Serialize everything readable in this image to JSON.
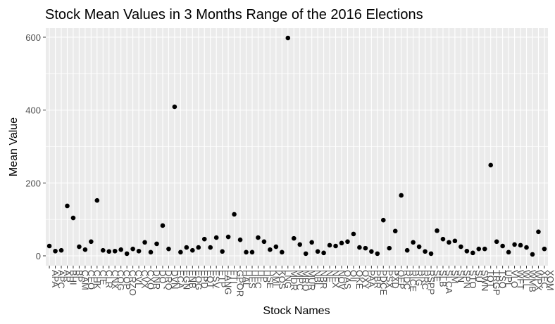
{
  "chart_data": {
    "type": "scatter",
    "title": "Stock Mean Values in 3 Months Range of the 2016 Elections",
    "x_label": "Stock Names",
    "y_label": "Mean Value",
    "categories": [
      "APA",
      "APC",
      "AR",
      "BHI",
      "BP",
      "CAM",
      "CEO",
      "CHK",
      "CIE",
      "CLR",
      "CNX",
      "COG",
      "COP",
      "CRZO",
      "CVI",
      "CVX",
      "CXO",
      "DNR",
      "DO",
      "DRQ",
      "DVN",
      "ECA",
      "EGN",
      "ENB",
      "EOG",
      "EPD",
      "EQT",
      "ESV",
      "ETP",
      "FANG",
      "FTI",
      "GPOR",
      "HAL",
      "HES",
      "HFC",
      "HP",
      "HSE",
      "KMI",
      "KOS",
      "LNG",
      "MDR",
      "MPC",
      "MRO",
      "MUR",
      "NBL",
      "NBR",
      "NE",
      "NFX",
      "NOV",
      "OAS",
      "OII",
      "OKE",
      "OXY",
      "PAA",
      "PBR",
      "PDCE",
      "PSX",
      "PXD",
      "QEP",
      "RDC",
      "RICE",
      "RIG",
      "RRC",
      "RSPP",
      "SE",
      "SLB",
      "SLCA",
      "SM",
      "SN",
      "SPN",
      "STO",
      "SU",
      "SWN",
      "TOT",
      "TRGP",
      "TSO",
      "UPL",
      "VLO",
      "WFT",
      "WLL",
      "WMB",
      "WPX",
      "XEC",
      "XOM"
    ],
    "values": [
      27,
      13,
      15,
      137,
      104,
      25,
      17,
      39,
      152,
      15,
      12,
      13,
      17,
      6,
      19,
      13,
      37,
      10,
      33,
      83,
      19,
      409,
      10,
      23,
      15,
      23,
      46,
      23,
      50,
      12,
      52,
      114,
      44,
      10,
      10,
      50,
      39,
      17,
      25,
      10,
      598,
      48,
      31,
      6,
      37,
      12,
      8,
      29,
      27,
      35,
      39,
      60,
      23,
      21,
      12,
      6,
      98,
      21,
      68,
      166,
      15,
      37,
      25,
      12,
      6,
      69,
      46,
      37,
      41,
      25,
      13,
      8,
      19,
      19,
      249,
      39,
      27,
      10,
      31,
      29,
      23,
      4,
      66,
      19
    ],
    "color": "#000000",
    "ylim": [
      -27,
      625
    ],
    "yticks": [
      0,
      200,
      400,
      600
    ],
    "grid": true
  }
}
